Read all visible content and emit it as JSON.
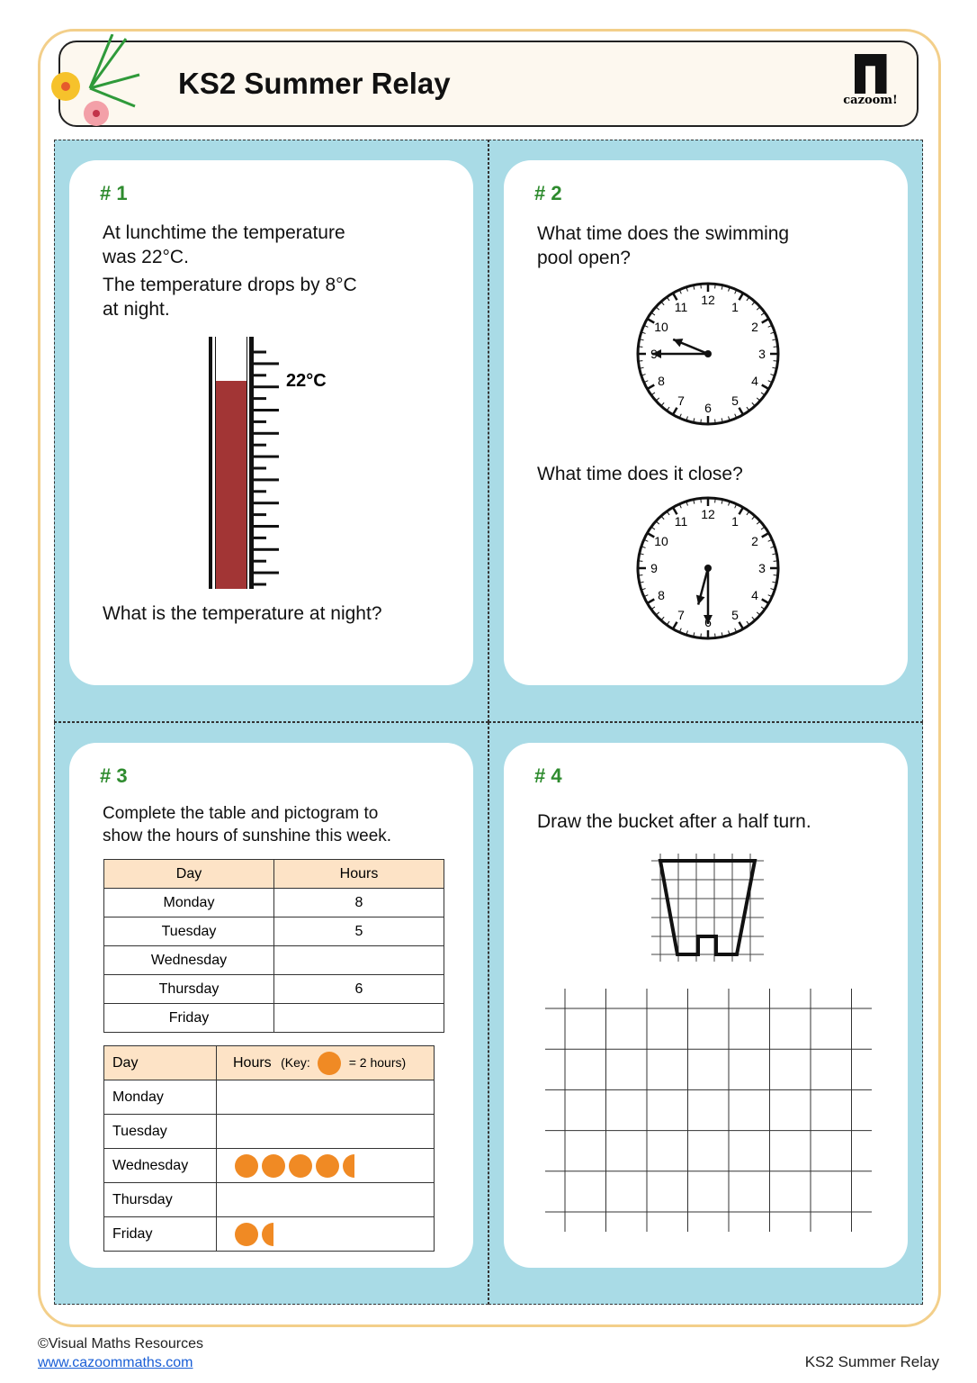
{
  "header": {
    "title": "KS2 Summer Relay",
    "logo_text": "cazoom!"
  },
  "q1": {
    "number": "# 1",
    "line1": "At lunchtime the temperature",
    "line2": "was 22°C.",
    "line3": "The temperature drops by 8°C",
    "line4": "at night.",
    "thermo_label": "22°C",
    "question": "What is the temperature at night?"
  },
  "q2": {
    "number": "# 2",
    "open_q1": "What time does the swimming",
    "open_q2": "pool open?",
    "close_q": "What time does it close?",
    "open_clock": {
      "hour": 9,
      "minute": 45
    },
    "close_clock": {
      "hour": 6,
      "minute": 30
    }
  },
  "q3": {
    "number": "# 3",
    "line1": "Complete the table and pictogram to",
    "line2": "show the hours of sunshine this week.",
    "table": {
      "headers": [
        "Day",
        "Hours"
      ],
      "rows": [
        [
          "Monday",
          "8"
        ],
        [
          "Tuesday",
          "5"
        ],
        [
          "Wednesday",
          ""
        ],
        [
          "Thursday",
          "6"
        ],
        [
          "Friday",
          ""
        ]
      ]
    },
    "pictogram": {
      "header_day": "Day",
      "header_hours": "Hours",
      "key_prefix": "(Key:",
      "key_suffix": "= 2 hours)",
      "rows": [
        {
          "day": "Monday",
          "symbols": 0
        },
        {
          "day": "Tuesday",
          "symbols": 0
        },
        {
          "day": "Wednesday",
          "symbols": 4.5
        },
        {
          "day": "Thursday",
          "symbols": 0
        },
        {
          "day": "Friday",
          "symbols": 1.5
        }
      ]
    },
    "accent": "#f08a24"
  },
  "q4": {
    "number": "# 4",
    "question": "Draw the bucket after a half turn."
  },
  "footer": {
    "copyright": "©Visual Maths Resources",
    "link": "www.cazoommaths.com",
    "right": "KS2 Summer Relay"
  }
}
